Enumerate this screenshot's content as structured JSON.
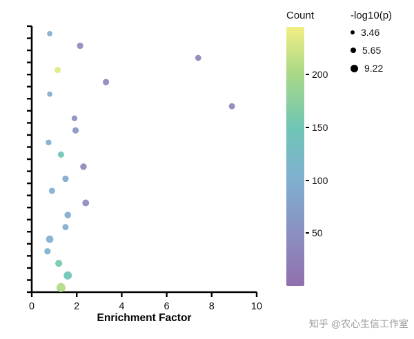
{
  "chart_data": {
    "type": "scatter",
    "title": "",
    "xlabel": "Enrichment Factor",
    "ylabel": "",
    "xlim": [
      0,
      10
    ],
    "x_ticks": [
      "0",
      "2",
      "4",
      "6",
      "8",
      "10"
    ],
    "y_tick_count": 23,
    "y_axis_labels_visible": false,
    "grid": false,
    "points": [
      {
        "x": 0.8,
        "row": 0,
        "count": 100,
        "logp": 3.9
      },
      {
        "x": 2.15,
        "row": 1,
        "count": 40,
        "logp": 5.2
      },
      {
        "x": 7.4,
        "row": 2,
        "count": 35,
        "logp": 4.8
      },
      {
        "x": 1.15,
        "row": 3,
        "count": 235,
        "logp": 5.2
      },
      {
        "x": 3.3,
        "row": 4,
        "count": 40,
        "logp": 5.2
      },
      {
        "x": 0.8,
        "row": 5,
        "count": 95,
        "logp": 3.9
      },
      {
        "x": 8.9,
        "row": 6,
        "count": 30,
        "logp": 5.0
      },
      {
        "x": 1.9,
        "row": 7,
        "count": 45,
        "logp": 4.5
      },
      {
        "x": 1.95,
        "row": 8,
        "count": 60,
        "logp": 5.2
      },
      {
        "x": 0.75,
        "row": 9,
        "count": 100,
        "logp": 4.5
      },
      {
        "x": 1.3,
        "row": 10,
        "count": 150,
        "logp": 5.2
      },
      {
        "x": 2.3,
        "row": 11,
        "count": 40,
        "logp": 5.5
      },
      {
        "x": 1.5,
        "row": 12,
        "count": 90,
        "logp": 5.2
      },
      {
        "x": 0.9,
        "row": 13,
        "count": 100,
        "logp": 5.0
      },
      {
        "x": 2.4,
        "row": 14,
        "count": 40,
        "logp": 5.8
      },
      {
        "x": 1.6,
        "row": 15,
        "count": 90,
        "logp": 5.5
      },
      {
        "x": 1.5,
        "row": 16,
        "count": 95,
        "logp": 5.0
      },
      {
        "x": 0.8,
        "row": 17,
        "count": 100,
        "logp": 6.5
      },
      {
        "x": 0.7,
        "row": 18,
        "count": 105,
        "logp": 5.2
      },
      {
        "x": 1.2,
        "row": 19,
        "count": 155,
        "logp": 6.0
      },
      {
        "x": 1.6,
        "row": 20,
        "count": 150,
        "logp": 7.5
      },
      {
        "x": 1.3,
        "row": 21,
        "count": 205,
        "logp": 8.5
      }
    ],
    "color_scale": {
      "title": "Count",
      "min": 0,
      "max": 245,
      "stops": [
        {
          "t": 0,
          "color": "#9070ae"
        },
        {
          "t": 50,
          "color": "#8a90c1"
        },
        {
          "t": 100,
          "color": "#80afd0"
        },
        {
          "t": 150,
          "color": "#6fc6b5"
        },
        {
          "t": 200,
          "color": "#a8d887"
        },
        {
          "t": 245,
          "color": "#f2ee84"
        }
      ],
      "ticks": [
        {
          "value": 50,
          "label": "50"
        },
        {
          "value": 100,
          "label": "100"
        },
        {
          "value": 150,
          "label": "150"
        },
        {
          "value": 200,
          "label": "200"
        }
      ]
    },
    "size_scale": {
      "title": "-log10(p)",
      "items": [
        {
          "value": 3.46,
          "label": "3.46"
        },
        {
          "value": 5.65,
          "label": "5.65"
        },
        {
          "value": 9.22,
          "label": "9.22"
        }
      ]
    }
  },
  "legends": {
    "count_title": "Count",
    "logp_title": "-log10(p)"
  },
  "watermark": "知乎 @农心生信工作室"
}
